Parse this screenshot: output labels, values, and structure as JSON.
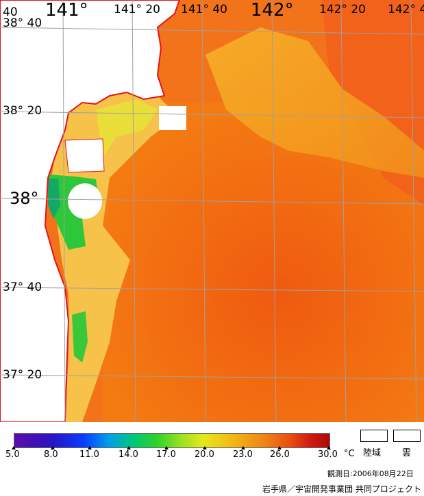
{
  "map": {
    "lon_labels": [
      "40",
      "141°",
      "141° 20",
      "141° 40",
      "142°",
      "142° 20",
      "142° 4"
    ],
    "lat_labels": [
      "38° 40",
      "38° 20",
      "38°",
      "37° 40",
      "37° 20"
    ]
  },
  "legend": {
    "ticks": [
      "5.0",
      "8.0",
      "11.0",
      "14.0",
      "17.0",
      "20.0",
      "23.0",
      "26.0",
      "30.0"
    ],
    "unit": "°C",
    "land_label": "陸域",
    "cloud_label": "雲",
    "colors": {
      "land": "#ffffff",
      "coast": "#e8101a",
      "grid": "#a0a0a0"
    }
  },
  "footer": {
    "observation_date": "観測日:2006年08月22日",
    "credit": "岩手県／宇宙開発事業団 共同プロジェクト"
  }
}
